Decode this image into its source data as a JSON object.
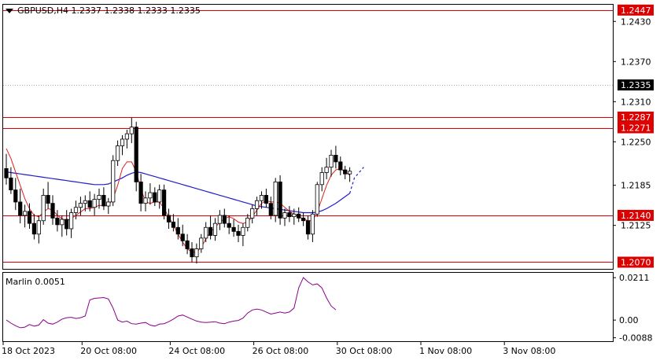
{
  "header": {
    "symbol_line": "GBPUSD,H4  1.2337 1.2338 1.2333 1.2335"
  },
  "chart_data": [
    {
      "type": "candlestick",
      "title": "GBPUSD,H4  1.2337 1.2338 1.2333 1.2335",
      "symbol": "GBPUSD",
      "timeframe": "H4",
      "ohlc_last": {
        "open": 1.2337,
        "high": 1.2338,
        "low": 1.2333,
        "close": 1.2335
      },
      "ylim": [
        1.206,
        1.2455
      ],
      "y_ticks": [
        "1.2430",
        "1.2370",
        "1.2310",
        "1.2250",
        "1.2185",
        "1.2125"
      ],
      "x_ticks": [
        {
          "label": "18 Oct 2023",
          "bar": 0
        },
        {
          "label": "20 Oct 08:00",
          "bar": 17
        },
        {
          "label": "24 Oct 08:00",
          "bar": 36
        },
        {
          "label": "26 Oct 08:00",
          "bar": 54
        },
        {
          "label": "30 Oct 08:00",
          "bar": 72
        },
        {
          "label": "1 Nov 08:00",
          "bar": 90
        },
        {
          "label": "3 Nov 08:00",
          "bar": 108
        }
      ],
      "horizontal_levels": [
        {
          "value": 1.2447,
          "label": "1.2447",
          "color": "#dd0000"
        },
        {
          "value": 1.2287,
          "label": "1.2287",
          "color": "#dd0000"
        },
        {
          "value": 1.2271,
          "label": "1.2271",
          "color": "#dd0000"
        },
        {
          "value": 1.214,
          "label": "1.2140",
          "color": "#dd0000"
        },
        {
          "value": 1.207,
          "label": "1.2070",
          "color": "#dd0000"
        }
      ],
      "current_price": {
        "value": 1.2335,
        "label": "1.2335",
        "color": "#000000"
      },
      "candles": [
        [
          1.221,
          1.2232,
          1.2186,
          1.2196
        ],
        [
          1.2196,
          1.2212,
          1.2172,
          1.2178
        ],
        [
          1.2178,
          1.2196,
          1.2148,
          1.216
        ],
        [
          1.216,
          1.218,
          1.2128,
          1.214
        ],
        [
          1.214,
          1.2156,
          1.2122,
          1.2146
        ],
        [
          1.2146,
          1.2158,
          1.212,
          1.2128
        ],
        [
          1.2128,
          1.2142,
          1.2104,
          1.2112
        ],
        [
          1.2112,
          1.214,
          1.2098,
          1.2132
        ],
        [
          1.2132,
          1.218,
          1.2126,
          1.217
        ],
        [
          1.217,
          1.219,
          1.215,
          1.2158
        ],
        [
          1.2158,
          1.217,
          1.2126,
          1.2136
        ],
        [
          1.2136,
          1.2148,
          1.2116,
          1.2126
        ],
        [
          1.2126,
          1.214,
          1.2108,
          1.2134
        ],
        [
          1.2134,
          1.2148,
          1.211,
          1.212
        ],
        [
          1.212,
          1.215,
          1.2106,
          1.2144
        ],
        [
          1.2144,
          1.2162,
          1.2134,
          1.2152
        ],
        [
          1.2152,
          1.2168,
          1.214,
          1.2158
        ],
        [
          1.2158,
          1.217,
          1.2146,
          1.2162
        ],
        [
          1.2162,
          1.2176,
          1.2146,
          1.2152
        ],
        [
          1.2152,
          1.2172,
          1.214,
          1.2164
        ],
        [
          1.2164,
          1.218,
          1.215,
          1.217
        ],
        [
          1.217,
          1.2182,
          1.2148,
          1.2154
        ],
        [
          1.2154,
          1.2166,
          1.2142,
          1.216
        ],
        [
          1.216,
          1.223,
          1.2154,
          1.2222
        ],
        [
          1.2222,
          1.2252,
          1.2214,
          1.2244
        ],
        [
          1.2244,
          1.226,
          1.223,
          1.2254
        ],
        [
          1.2254,
          1.2268,
          1.224,
          1.2262
        ],
        [
          1.2262,
          1.2286,
          1.2248,
          1.2272
        ],
        [
          1.2272,
          1.228,
          1.2176,
          1.219
        ],
        [
          1.219,
          1.2202,
          1.2146,
          1.2158
        ],
        [
          1.2158,
          1.2176,
          1.2146,
          1.2166
        ],
        [
          1.2166,
          1.2188,
          1.2156,
          1.2174
        ],
        [
          1.2174,
          1.2182,
          1.2154,
          1.216
        ],
        [
          1.216,
          1.2186,
          1.215,
          1.2178
        ],
        [
          1.2178,
          1.2186,
          1.2134,
          1.214
        ],
        [
          1.214,
          1.215,
          1.212,
          1.213
        ],
        [
          1.213,
          1.2142,
          1.2116,
          1.2122
        ],
        [
          1.2122,
          1.2136,
          1.2104,
          1.2112
        ],
        [
          1.2112,
          1.2126,
          1.2094,
          1.2102
        ],
        [
          1.2102,
          1.2112,
          1.2082,
          1.209
        ],
        [
          1.209,
          1.21,
          1.207,
          1.2078
        ],
        [
          1.2078,
          1.2098,
          1.2068,
          1.209
        ],
        [
          1.209,
          1.2112,
          1.2084,
          1.2106
        ],
        [
          1.2106,
          1.213,
          1.21,
          1.2122
        ],
        [
          1.2122,
          1.214,
          1.2104,
          1.211
        ],
        [
          1.211,
          1.2136,
          1.2102,
          1.2128
        ],
        [
          1.2128,
          1.2148,
          1.2118,
          1.214
        ],
        [
          1.214,
          1.215,
          1.2122,
          1.2128
        ],
        [
          1.2128,
          1.214,
          1.2112,
          1.2122
        ],
        [
          1.2122,
          1.2134,
          1.2108,
          1.2116
        ],
        [
          1.2116,
          1.2126,
          1.21,
          1.211
        ],
        [
          1.211,
          1.2128,
          1.2094,
          1.2122
        ],
        [
          1.2122,
          1.2142,
          1.2116,
          1.2136
        ],
        [
          1.2136,
          1.2156,
          1.2128,
          1.215
        ],
        [
          1.215,
          1.2168,
          1.214,
          1.2162
        ],
        [
          1.2162,
          1.2176,
          1.215,
          1.217
        ],
        [
          1.217,
          1.218,
          1.2152,
          1.2158
        ],
        [
          1.2158,
          1.2168,
          1.2134,
          1.214
        ],
        [
          1.214,
          1.2196,
          1.213,
          1.219
        ],
        [
          1.219,
          1.22,
          1.2126,
          1.2136
        ],
        [
          1.2136,
          1.215,
          1.2124,
          1.2144
        ],
        [
          1.2144,
          1.2154,
          1.213,
          1.2138
        ],
        [
          1.2138,
          1.215,
          1.2126,
          1.2142
        ],
        [
          1.2142,
          1.2152,
          1.213,
          1.2136
        ],
        [
          1.2136,
          1.2144,
          1.2124,
          1.2132
        ],
        [
          1.2132,
          1.214,
          1.2104,
          1.2112
        ],
        [
          1.2112,
          1.2148,
          1.21,
          1.2142
        ],
        [
          1.2142,
          1.219,
          1.2138,
          1.2186
        ],
        [
          1.2186,
          1.2212,
          1.2176,
          1.2204
        ],
        [
          1.2204,
          1.2226,
          1.2194,
          1.2212
        ],
        [
          1.2212,
          1.2238,
          1.2198,
          1.223
        ],
        [
          1.223,
          1.2244,
          1.221,
          1.222
        ],
        [
          1.222,
          1.2228,
          1.22,
          1.2208
        ],
        [
          1.2208,
          1.2214,
          1.2194,
          1.2202
        ],
        [
          1.2202,
          1.2212,
          1.219,
          1.2206
        ]
      ],
      "ma_red": [
        1.224,
        1.2225,
        1.2205,
        1.2185,
        1.2165,
        1.215,
        1.214,
        1.2138,
        1.2145,
        1.215,
        1.2148,
        1.214,
        1.2135,
        1.2132,
        1.2135,
        1.214,
        1.2145,
        1.215,
        1.215,
        1.2152,
        1.2155,
        1.2155,
        1.2155,
        1.2165,
        1.2185,
        1.221,
        1.222,
        1.222,
        1.2205,
        1.218,
        1.216,
        1.2158,
        1.216,
        1.216,
        1.215,
        1.2138,
        1.2125,
        1.2112,
        1.21,
        1.209,
        1.2085,
        1.2085,
        1.2092,
        1.2105,
        1.2115,
        1.2122,
        1.213,
        1.2135,
        1.2138,
        1.2135,
        1.213,
        1.2128,
        1.213,
        1.2138,
        1.2148,
        1.2158,
        1.2162,
        1.216,
        1.216,
        1.2158,
        1.2152,
        1.2146,
        1.2142,
        1.2138,
        1.2135,
        1.2132,
        1.2132,
        1.2145,
        1.2165,
        1.2185,
        1.22,
        1.2208,
        1.221,
        1.2205,
        1.22
      ],
      "ma_blue": [
        1.2205,
        1.2204,
        1.2203,
        1.2202,
        1.2201,
        1.22,
        1.2199,
        1.2198,
        1.2197,
        1.2196,
        1.2195,
        1.2194,
        1.2193,
        1.2192,
        1.2191,
        1.219,
        1.2189,
        1.2188,
        1.2187,
        1.2186,
        1.2186,
        1.2186,
        1.2187,
        1.219,
        1.2193,
        1.2196,
        1.22,
        1.2203,
        1.2205,
        1.2204,
        1.2202,
        1.22,
        1.2198,
        1.2196,
        1.2194,
        1.2192,
        1.219,
        1.2188,
        1.2186,
        1.2184,
        1.2182,
        1.218,
        1.2178,
        1.2176,
        1.2174,
        1.2172,
        1.217,
        1.2168,
        1.2166,
        1.2164,
        1.2162,
        1.216,
        1.2158,
        1.2156,
        1.2154,
        1.2153,
        1.2152,
        1.2151,
        1.215,
        1.2149,
        1.2148,
        1.2147,
        1.2146,
        1.2145,
        1.2144,
        1.2144,
        1.2144,
        1.2145,
        1.2147,
        1.215,
        1.2154,
        1.2158,
        1.2163,
        1.2168,
        1.2173
      ],
      "ma_blue_projection": [
        1.2196,
        1.2204,
        1.2212
      ]
    },
    {
      "type": "line",
      "title": "Marlin 0.0051",
      "indicator": "Marlin",
      "value_label": "0.0051",
      "ylim": [
        -0.0105,
        0.0235
      ],
      "y_ticks": [
        "0.0211",
        "0.00",
        "-0.0088"
      ],
      "series": [
        {
          "color": "#8b008b",
          "values": [
            0.0,
            -0.0015,
            -0.0028,
            -0.0038,
            -0.0035,
            -0.0022,
            -0.003,
            -0.0025,
            0.0002,
            -0.0015,
            -0.002,
            -0.001,
            0.0005,
            0.0012,
            0.0014,
            0.0008,
            0.0012,
            0.002,
            0.01,
            0.0108,
            0.011,
            0.0112,
            0.0105,
            0.006,
            0.0,
            -0.001,
            -0.0005,
            -0.0018,
            -0.002,
            -0.0015,
            -0.0012,
            -0.0025,
            -0.003,
            -0.002,
            -0.0018,
            -0.0008,
            0.0005,
            0.002,
            0.0025,
            0.0015,
            0.0005,
            -0.0005,
            -0.001,
            -0.0012,
            -0.001,
            -0.0008,
            -0.0015,
            -0.0018,
            -0.001,
            -0.0005,
            -0.0002,
            0.001,
            0.0035,
            0.005,
            0.0055,
            0.005,
            0.004,
            0.003,
            0.0035,
            0.004,
            0.0035,
            0.004,
            0.006,
            0.016,
            0.0211,
            0.019,
            0.0175,
            0.018,
            0.016,
            0.011,
            0.007,
            0.0051
          ]
        }
      ]
    }
  ]
}
